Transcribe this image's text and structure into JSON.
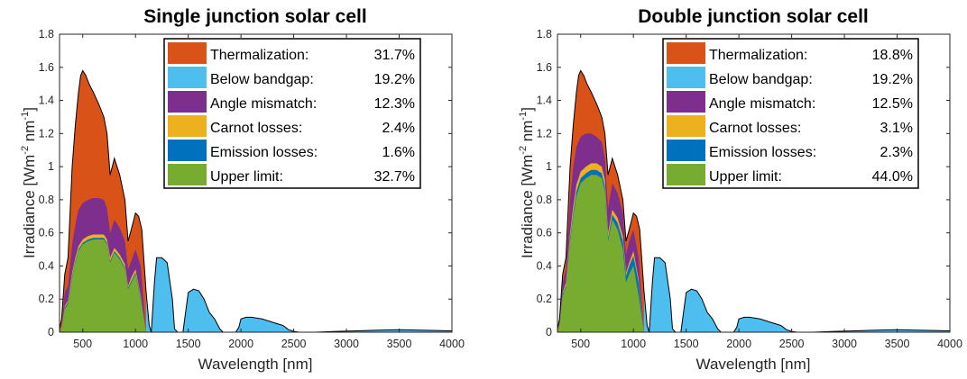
{
  "chart_data": [
    {
      "type": "area",
      "title": "Single junction solar cell",
      "xlabel": "Wavelength [nm]",
      "ylabel_main": "Irradiance [Wm",
      "ylabel_sup1": "-2",
      "ylabel_mid": " nm",
      "ylabel_sup2": "-1",
      "ylabel_end": "]",
      "xlim": [
        280,
        4000
      ],
      "ylim": [
        0,
        1.8
      ],
      "xticks": [
        "500",
        "1000",
        "1500",
        "2000",
        "2500",
        "3000",
        "3500",
        "4000"
      ],
      "yticks": [
        "0",
        "0.2",
        "0.4",
        "0.6",
        "0.8",
        "1",
        "1.2",
        "1.4",
        "1.6",
        "1.8"
      ],
      "legend_placement": "top-right",
      "legend": [
        {
          "name": "Thermalization:",
          "value": "31.7%",
          "color": "#D95319"
        },
        {
          "name": "Below bandgap:",
          "value": "19.2%",
          "color": "#4DBEEE"
        },
        {
          "name": "Angle mismatch:",
          "value": "12.3%",
          "color": "#7E2F8E"
        },
        {
          "name": "Carnot losses:",
          "value": "2.4%",
          "color": "#EDB120"
        },
        {
          "name": "Emission losses:",
          "value": "1.6%",
          "color": "#0072BD"
        },
        {
          "name": "Upper limit:",
          "value": "32.7%",
          "color": "#77AC30"
        }
      ],
      "spectrum": {
        "x": [
          280,
          300,
          330,
          360,
          400,
          430,
          460,
          480,
          500,
          530,
          560,
          600,
          650,
          700,
          730,
          760,
          800,
          850,
          900,
          930,
          960,
          1000,
          1030,
          1060,
          1100,
          1130,
          1150,
          1180,
          1200,
          1250,
          1300,
          1350,
          1370,
          1400,
          1450,
          1500,
          1550,
          1600,
          1650,
          1700,
          1750,
          1800,
          1830,
          1900,
          1950,
          1980,
          2000,
          2050,
          2100,
          2200,
          2300,
          2400,
          2450,
          2500,
          2550,
          2700,
          2900,
          3100,
          3300,
          3500,
          3700,
          3900,
          4000
        ],
        "y": [
          0.02,
          0.08,
          0.35,
          0.45,
          1.0,
          1.25,
          1.45,
          1.55,
          1.58,
          1.55,
          1.5,
          1.45,
          1.38,
          1.3,
          1.2,
          0.95,
          1.05,
          0.95,
          0.8,
          0.55,
          0.62,
          0.72,
          0.7,
          0.62,
          0.25,
          0.04,
          0.0,
          0.3,
          0.45,
          0.45,
          0.42,
          0.2,
          0.02,
          0.0,
          0.0,
          0.24,
          0.26,
          0.25,
          0.2,
          0.12,
          0.08,
          0.02,
          0.0,
          0.0,
          0.0,
          0.03,
          0.08,
          0.09,
          0.09,
          0.08,
          0.06,
          0.04,
          0.015,
          0.005,
          0.0,
          0.0,
          0.005,
          0.008,
          0.012,
          0.015,
          0.012,
          0.01,
          0.008
        ]
      },
      "upper_limit": {
        "x": [
          280,
          300,
          330,
          360,
          400,
          430,
          460,
          500,
          550,
          600,
          650,
          700,
          730,
          760,
          800,
          850,
          900,
          930,
          960,
          1000,
          1050,
          1100
        ],
        "y": [
          0.0,
          0.02,
          0.14,
          0.17,
          0.33,
          0.42,
          0.49,
          0.53,
          0.55,
          0.56,
          0.56,
          0.56,
          0.53,
          0.42,
          0.48,
          0.44,
          0.38,
          0.26,
          0.3,
          0.35,
          0.2,
          0.0
        ]
      },
      "emission_top": {
        "x": [
          280,
          300,
          330,
          360,
          400,
          430,
          460,
          500,
          550,
          600,
          650,
          700,
          730,
          760,
          800,
          850,
          900,
          930,
          960,
          1000,
          1050,
          1100
        ],
        "y": [
          0.0,
          0.02,
          0.15,
          0.18,
          0.34,
          0.43,
          0.5,
          0.54,
          0.56,
          0.57,
          0.57,
          0.57,
          0.54,
          0.43,
          0.49,
          0.45,
          0.39,
          0.27,
          0.31,
          0.36,
          0.21,
          0.0
        ]
      },
      "carnot_top": {
        "x": [
          280,
          300,
          330,
          360,
          400,
          430,
          460,
          500,
          550,
          600,
          650,
          700,
          730,
          760,
          800,
          850,
          900,
          930,
          960,
          1000,
          1050,
          1100
        ],
        "y": [
          0.0,
          0.03,
          0.16,
          0.19,
          0.36,
          0.45,
          0.52,
          0.56,
          0.58,
          0.59,
          0.59,
          0.59,
          0.56,
          0.45,
          0.51,
          0.47,
          0.41,
          0.28,
          0.33,
          0.38,
          0.22,
          0.0
        ]
      },
      "angle_top": {
        "x": [
          280,
          300,
          330,
          360,
          400,
          430,
          460,
          500,
          550,
          600,
          650,
          700,
          730,
          760,
          800,
          850,
          900,
          930,
          960,
          1000,
          1050,
          1100
        ],
        "y": [
          0.0,
          0.04,
          0.24,
          0.28,
          0.53,
          0.65,
          0.74,
          0.78,
          0.8,
          0.81,
          0.81,
          0.8,
          0.75,
          0.6,
          0.68,
          0.63,
          0.55,
          0.38,
          0.43,
          0.5,
          0.4,
          0.0
        ]
      }
    },
    {
      "type": "area",
      "title": "Double junction solar cell",
      "xlabel": "Wavelength [nm]",
      "ylabel_main": "Irradiance [Wm",
      "ylabel_sup1": "-2",
      "ylabel_mid": " nm",
      "ylabel_sup2": "-1",
      "ylabel_end": "]",
      "xlim": [
        280,
        4000
      ],
      "ylim": [
        0,
        1.8
      ],
      "xticks": [
        "500",
        "1000",
        "1500",
        "2000",
        "2500",
        "3000",
        "3500",
        "4000"
      ],
      "yticks": [
        "0",
        "0.2",
        "0.4",
        "0.6",
        "0.8",
        "1",
        "1.2",
        "1.4",
        "1.6",
        "1.8"
      ],
      "legend_placement": "top-right",
      "legend": [
        {
          "name": "Thermalization:",
          "value": "18.8%",
          "color": "#D95319"
        },
        {
          "name": "Below bandgap:",
          "value": "19.2%",
          "color": "#4DBEEE"
        },
        {
          "name": "Angle mismatch:",
          "value": "12.5%",
          "color": "#7E2F8E"
        },
        {
          "name": "Carnot losses:",
          "value": "3.1%",
          "color": "#EDB120"
        },
        {
          "name": "Emission losses:",
          "value": "2.3%",
          "color": "#0072BD"
        },
        {
          "name": "Upper limit:",
          "value": "44.0%",
          "color": "#77AC30"
        }
      ],
      "spectrum": {
        "x": [
          280,
          300,
          330,
          360,
          400,
          430,
          460,
          480,
          500,
          530,
          560,
          600,
          650,
          700,
          730,
          760,
          800,
          850,
          900,
          930,
          960,
          1000,
          1030,
          1060,
          1100,
          1130,
          1150,
          1180,
          1200,
          1250,
          1300,
          1350,
          1370,
          1400,
          1450,
          1500,
          1550,
          1600,
          1650,
          1700,
          1750,
          1800,
          1830,
          1900,
          1950,
          1980,
          2000,
          2050,
          2100,
          2200,
          2300,
          2400,
          2450,
          2500,
          2550,
          2700,
          2900,
          3100,
          3300,
          3500,
          3700,
          3900,
          4000
        ],
        "y": [
          0.02,
          0.08,
          0.35,
          0.45,
          1.0,
          1.25,
          1.45,
          1.55,
          1.58,
          1.55,
          1.5,
          1.45,
          1.38,
          1.3,
          1.2,
          0.95,
          1.05,
          0.95,
          0.8,
          0.55,
          0.62,
          0.72,
          0.7,
          0.62,
          0.25,
          0.04,
          0.0,
          0.3,
          0.45,
          0.45,
          0.42,
          0.2,
          0.02,
          0.0,
          0.0,
          0.24,
          0.26,
          0.25,
          0.2,
          0.12,
          0.08,
          0.02,
          0.0,
          0.0,
          0.0,
          0.03,
          0.08,
          0.09,
          0.09,
          0.08,
          0.06,
          0.04,
          0.015,
          0.005,
          0.0,
          0.0,
          0.005,
          0.008,
          0.012,
          0.015,
          0.012,
          0.01,
          0.008
        ]
      },
      "upper_limit": {
        "x": [
          280,
          300,
          330,
          360,
          400,
          430,
          460,
          500,
          550,
          600,
          650,
          700,
          730,
          760,
          800,
          850,
          900,
          930,
          960,
          1000,
          1050,
          1100
        ],
        "y": [
          0.0,
          0.04,
          0.22,
          0.27,
          0.55,
          0.7,
          0.82,
          0.9,
          0.93,
          0.95,
          0.95,
          0.93,
          0.85,
          0.55,
          0.68,
          0.62,
          0.5,
          0.3,
          0.35,
          0.4,
          0.22,
          0.0
        ]
      },
      "emission_top": {
        "x": [
          280,
          300,
          330,
          360,
          400,
          430,
          460,
          500,
          550,
          600,
          650,
          700,
          730,
          760,
          800,
          850,
          900,
          930,
          960,
          1000,
          1050,
          1100
        ],
        "y": [
          0.0,
          0.04,
          0.23,
          0.28,
          0.57,
          0.72,
          0.85,
          0.93,
          0.96,
          0.98,
          0.98,
          0.96,
          0.88,
          0.57,
          0.71,
          0.66,
          0.55,
          0.34,
          0.4,
          0.46,
          0.3,
          0.0
        ]
      },
      "carnot_top": {
        "x": [
          280,
          300,
          330,
          360,
          400,
          430,
          460,
          500,
          550,
          600,
          650,
          700,
          730,
          760,
          800,
          850,
          900,
          930,
          960,
          1000,
          1050,
          1100
        ],
        "y": [
          0.0,
          0.05,
          0.24,
          0.3,
          0.6,
          0.76,
          0.89,
          0.97,
          1.0,
          1.02,
          1.02,
          1.0,
          0.92,
          0.6,
          0.74,
          0.69,
          0.58,
          0.36,
          0.42,
          0.49,
          0.32,
          0.0
        ]
      },
      "angle_top": {
        "x": [
          280,
          300,
          330,
          360,
          400,
          430,
          460,
          500,
          550,
          600,
          650,
          700,
          730,
          760,
          800,
          850,
          900,
          930,
          960,
          1000,
          1050,
          1100
        ],
        "y": [
          0.0,
          0.06,
          0.3,
          0.38,
          0.8,
          1.0,
          1.12,
          1.18,
          1.2,
          1.2,
          1.18,
          1.15,
          1.05,
          0.75,
          0.9,
          0.84,
          0.72,
          0.47,
          0.55,
          0.62,
          0.45,
          0.0
        ]
      }
    }
  ]
}
